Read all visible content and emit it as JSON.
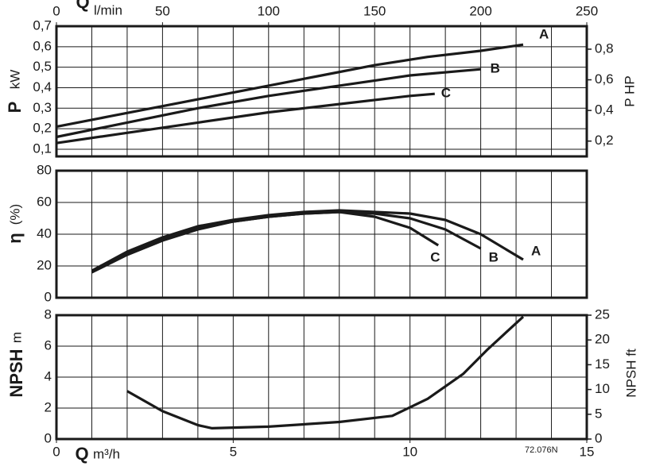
{
  "chart_data": [
    {
      "type": "line",
      "y_label": "P",
      "y_unit": "kW",
      "y2_label": "P HP",
      "x2_label": "Q",
      "x2_unit": "l/min",
      "x2lim": [
        0,
        250
      ],
      "x2ticks": [
        0,
        50,
        100,
        150,
        200,
        250
      ],
      "xlim": [
        0,
        15
      ],
      "xminorticks": [
        1,
        2,
        3,
        4,
        5,
        6,
        7,
        8,
        9,
        10,
        11,
        12,
        13,
        14
      ],
      "ylim": [
        0.065,
        0.7
      ],
      "yticks": [
        {
          "value": 0.1,
          "label": "0,1"
        },
        {
          "value": 0.2,
          "label": "0,2"
        },
        {
          "value": 0.3,
          "label": "0,3"
        },
        {
          "value": 0.4,
          "label": "0,4"
        },
        {
          "value": 0.5,
          "label": "0,5"
        },
        {
          "value": 0.6,
          "label": "0,6"
        },
        {
          "value": 0.7,
          "label": "0,7"
        }
      ],
      "y2lim": [
        0.1,
        0.95
      ],
      "y2ticks": [
        {
          "value": 0.2,
          "label": "0,2"
        },
        {
          "value": 0.4,
          "label": "0,4"
        },
        {
          "value": 0.6,
          "label": "0,6"
        },
        {
          "value": 0.8,
          "label": "0,8"
        }
      ],
      "grid": true,
      "series": [
        {
          "name": "A",
          "color": "#1a1a1a",
          "x": [
            0,
            1.5,
            3,
            4.5,
            6,
            7.5,
            9,
            10.5,
            12,
            13.2
          ],
          "values": [
            0.21,
            0.26,
            0.31,
            0.36,
            0.41,
            0.46,
            0.51,
            0.55,
            0.58,
            0.61
          ]
        },
        {
          "name": "B",
          "color": "#1a1a1a",
          "x": [
            0,
            2,
            4,
            6,
            8,
            10,
            12
          ],
          "values": [
            0.16,
            0.23,
            0.3,
            0.36,
            0.41,
            0.46,
            0.49
          ]
        },
        {
          "name": "C",
          "color": "#1a1a1a",
          "x": [
            0,
            2,
            4,
            6,
            8,
            10,
            10.7
          ],
          "values": [
            0.13,
            0.18,
            0.23,
            0.28,
            0.32,
            0.36,
            0.37
          ]
        }
      ]
    },
    {
      "type": "line",
      "y_label": "η",
      "y_unit": "(%)",
      "xlim": [
        0,
        15
      ],
      "xminorticks": [
        1,
        2,
        3,
        4,
        5,
        6,
        7,
        8,
        9,
        10,
        11,
        12,
        13,
        14
      ],
      "ylim": [
        0,
        80
      ],
      "yticks": [
        0,
        20,
        40,
        60,
        80
      ],
      "grid": true,
      "series": [
        {
          "name": "A",
          "color": "#1a1a1a",
          "x": [
            1,
            2,
            3,
            4,
            5,
            6,
            7,
            8,
            9,
            10,
            11,
            12,
            13.2
          ],
          "values": [
            17,
            29,
            38,
            45,
            49,
            52,
            54,
            55,
            54,
            53,
            49,
            40,
            24
          ]
        },
        {
          "name": "B",
          "color": "#1a1a1a",
          "x": [
            1,
            2,
            3,
            4,
            5,
            6,
            7,
            8,
            9,
            10,
            11,
            12
          ],
          "values": [
            16,
            28,
            37,
            44,
            48,
            51,
            53,
            54,
            53,
            50,
            43,
            31
          ]
        },
        {
          "name": "C",
          "color": "#1a1a1a",
          "x": [
            1,
            2,
            3,
            4,
            5,
            6,
            7,
            8,
            9,
            10,
            10.8
          ],
          "values": [
            16,
            27,
            36,
            43,
            48,
            51,
            53,
            54,
            51,
            44,
            33
          ]
        }
      ]
    },
    {
      "type": "line",
      "y_label": "NPSH",
      "y_unit": "m",
      "y2_label": "NPSH ft",
      "x_label": "Q",
      "x_unit": "m³/h",
      "note": "72.076N",
      "xlim": [
        0,
        15
      ],
      "xticks": [
        0,
        5,
        10,
        15
      ],
      "xminorticks": [
        1,
        2,
        3,
        4,
        5,
        6,
        7,
        8,
        9,
        10,
        11,
        12,
        13,
        14
      ],
      "ylim": [
        0,
        8
      ],
      "yticks": [
        0,
        2,
        4,
        6,
        8
      ],
      "y2lim": [
        0,
        25
      ],
      "y2ticks": [
        0,
        5,
        10,
        15,
        20,
        25
      ],
      "grid": true,
      "series": [
        {
          "name": "NPSH",
          "color": "#1a1a1a",
          "x": [
            2,
            3,
            4,
            4.4,
            6,
            8,
            9.5,
            10.5,
            11.5,
            12.2,
            13.2
          ],
          "values": [
            3.1,
            1.8,
            0.9,
            0.7,
            0.8,
            1.1,
            1.5,
            2.6,
            4.2,
            5.8,
            7.9
          ]
        }
      ]
    }
  ]
}
